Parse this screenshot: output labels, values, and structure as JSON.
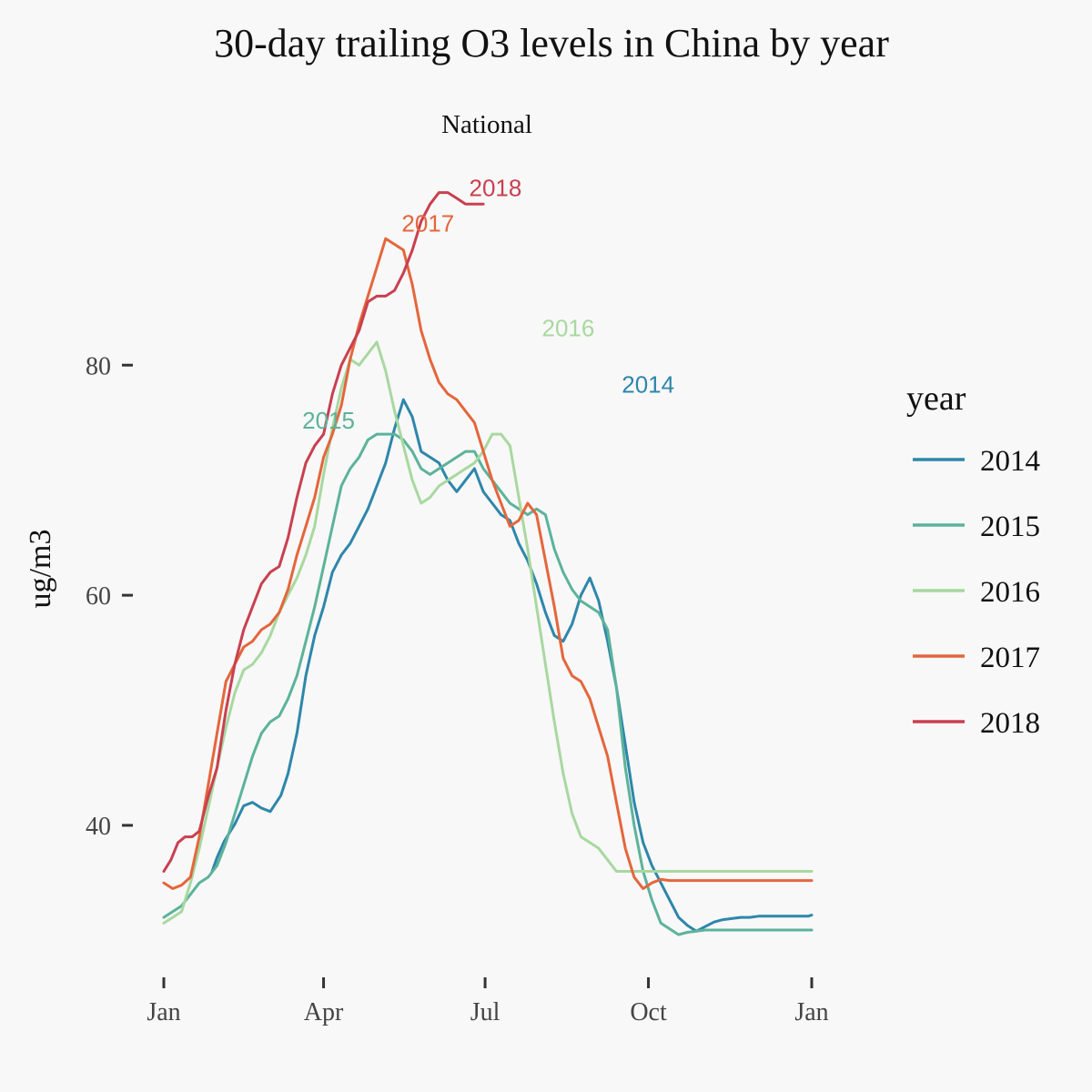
{
  "chart_data": {
    "type": "line",
    "title": "30-day trailing O3 levels in China by year",
    "facet_label": "National",
    "xlabel": "",
    "ylabel": "ug/m3",
    "x_ticks": [
      "Jan",
      "Apr",
      "Jul",
      "Oct",
      "Jan"
    ],
    "x_tick_days": [
      0,
      90,
      181,
      273,
      365
    ],
    "xlim": [
      0,
      365
    ],
    "y_ticks": [
      40,
      60,
      80
    ],
    "ylim": [
      27.5,
      97.5
    ],
    "grid": false,
    "legend": {
      "title": "year",
      "position": "right"
    },
    "x_unit": "day of year",
    "series": [
      {
        "name": "2014",
        "color": "#2e86ab",
        "label": "2014",
        "x": [
          27,
          30,
          34,
          40,
          45,
          50,
          55,
          60,
          66,
          70,
          75,
          80,
          85,
          90,
          95,
          100,
          105,
          110,
          115,
          120,
          125,
          130,
          135,
          140,
          145,
          150,
          155,
          160,
          165,
          170,
          175,
          180,
          185,
          190,
          195,
          200,
          205,
          210,
          215,
          220,
          225,
          230,
          235,
          240,
          245,
          250,
          255,
          260,
          265,
          270,
          275,
          280,
          285,
          290,
          295,
          300,
          305,
          310,
          315,
          320,
          325,
          330,
          335,
          340,
          345,
          350,
          355,
          360,
          363,
          365
        ],
        "y": [
          35.9,
          37.2,
          38.6,
          40.1,
          41.7,
          42.0,
          41.5,
          41.2,
          42.6,
          44.5,
          48.0,
          53.0,
          56.5,
          59.0,
          62.0,
          63.5,
          64.5,
          66.0,
          67.5,
          69.5,
          71.5,
          74.5,
          77.0,
          75.5,
          72.5,
          72.0,
          71.5,
          70.0,
          69.0,
          70.0,
          71.0,
          69.0,
          68.0,
          67.0,
          66.5,
          64.5,
          63.0,
          61.0,
          58.5,
          56.5,
          56.0,
          57.5,
          60.0,
          61.5,
          59.5,
          56.0,
          52.0,
          47.0,
          42.0,
          38.5,
          36.5,
          35.0,
          33.5,
          32.0,
          31.3,
          30.8,
          31.2,
          31.6,
          31.8,
          31.9,
          32.0,
          32.0,
          32.1,
          32.1,
          32.1,
          32.1,
          32.1,
          32.1,
          32.1,
          32.2
        ],
        "label_x": 258,
        "label_y": 77.6
      },
      {
        "name": "2015",
        "color": "#5cb39a",
        "label": "2015",
        "x": [
          0,
          5,
          10,
          15,
          20,
          25,
          30,
          35,
          40,
          45,
          50,
          55,
          60,
          65,
          70,
          75,
          80,
          85,
          90,
          95,
          100,
          105,
          110,
          115,
          120,
          125,
          130,
          135,
          140,
          145,
          150,
          155,
          160,
          165,
          170,
          175,
          180,
          185,
          190,
          195,
          200,
          205,
          210,
          215,
          220,
          225,
          230,
          235,
          240,
          245,
          250,
          255,
          260,
          265,
          270,
          275,
          280,
          285,
          290,
          295,
          300,
          305,
          310,
          315,
          320,
          325,
          330,
          335,
          340,
          345,
          350,
          355,
          360,
          365
        ],
        "y": [
          32.0,
          32.5,
          33.0,
          34.0,
          35.0,
          35.5,
          36.5,
          38.5,
          41.0,
          43.5,
          46.0,
          48.0,
          49.0,
          49.5,
          51.0,
          53.0,
          56.0,
          59.0,
          62.5,
          66.0,
          69.5,
          71.0,
          72.0,
          73.5,
          74.0,
          74.0,
          74.0,
          73.5,
          72.5,
          71.0,
          70.5,
          71.0,
          71.5,
          72.0,
          72.5,
          72.5,
          71.0,
          70.0,
          69.0,
          68.0,
          67.5,
          67.0,
          67.5,
          67.0,
          64.0,
          62.0,
          60.5,
          59.5,
          59.0,
          58.5,
          57.0,
          52.0,
          45.0,
          40.0,
          36.0,
          33.5,
          31.5,
          31.0,
          30.5,
          30.7,
          30.8,
          30.9,
          30.9,
          30.9,
          30.9,
          30.9,
          30.9,
          30.9,
          30.9,
          30.9,
          30.9,
          30.9,
          30.9,
          30.9
        ],
        "label_x": 78,
        "label_y": 74.5
      },
      {
        "name": "2016",
        "color": "#a8d8a0",
        "label": "2016",
        "x": [
          0,
          5,
          10,
          15,
          20,
          25,
          30,
          35,
          40,
          45,
          50,
          55,
          60,
          65,
          70,
          75,
          80,
          85,
          90,
          95,
          100,
          105,
          110,
          115,
          120,
          125,
          130,
          135,
          140,
          145,
          150,
          155,
          160,
          165,
          170,
          175,
          180,
          185,
          190,
          195,
          200,
          205,
          210,
          215,
          220,
          225,
          230,
          235,
          240,
          245,
          250,
          255,
          260,
          265,
          270,
          275,
          280,
          285,
          290,
          295,
          300,
          305,
          310,
          315,
          320,
          325,
          330,
          335,
          340,
          345,
          350,
          355,
          360,
          365
        ],
        "y": [
          31.5,
          32.0,
          32.5,
          35.0,
          38.0,
          41.5,
          45.0,
          48.5,
          51.5,
          53.5,
          54.0,
          55.0,
          56.5,
          58.5,
          60.0,
          61.5,
          63.5,
          66.0,
          70.5,
          74.5,
          78.0,
          80.5,
          80.0,
          81.0,
          82.0,
          79.5,
          76.0,
          73.0,
          70.0,
          68.0,
          68.5,
          69.5,
          70.0,
          70.5,
          71.0,
          71.5,
          72.5,
          74.0,
          74.0,
          73.0,
          68.5,
          64.0,
          59.0,
          54.0,
          49.0,
          44.5,
          41.0,
          39.0,
          38.5,
          38.0,
          37.0,
          36.0,
          36.0,
          36.0,
          36.0,
          36.0,
          36.0,
          36.0,
          36.0,
          36.0,
          36.0,
          36.0,
          36.0,
          36.0,
          36.0,
          36.0,
          36.0,
          36.0,
          36.0,
          36.0,
          36.0,
          36.0,
          36.0,
          36.0
        ],
        "label_x": 213,
        "label_y": 82.5
      },
      {
        "name": "2017",
        "color": "#e4663c",
        "label": "2017",
        "x": [
          0,
          5,
          10,
          15,
          20,
          25,
          30,
          35,
          40,
          45,
          50,
          55,
          60,
          65,
          70,
          75,
          80,
          85,
          90,
          95,
          100,
          105,
          110,
          115,
          120,
          125,
          130,
          135,
          140,
          145,
          150,
          155,
          160,
          165,
          170,
          175,
          180,
          185,
          190,
          195,
          200,
          205,
          210,
          215,
          220,
          225,
          230,
          235,
          240,
          245,
          250,
          255,
          260,
          265,
          270,
          275,
          280,
          285,
          290,
          295,
          300,
          305,
          310,
          315,
          320,
          325,
          330,
          335,
          340,
          345,
          350,
          355,
          360,
          365
        ],
        "y": [
          35.0,
          34.5,
          34.8,
          35.5,
          39.0,
          43.5,
          48.0,
          52.5,
          54.0,
          55.5,
          56.0,
          57.0,
          57.5,
          58.5,
          60.5,
          63.5,
          66.0,
          68.5,
          72.0,
          74.0,
          76.5,
          80.5,
          83.5,
          86.0,
          88.5,
          91.0,
          90.5,
          90.0,
          87.0,
          83.0,
          80.5,
          78.5,
          77.5,
          77.0,
          76.0,
          75.0,
          72.5,
          70.0,
          68.0,
          66.0,
          66.5,
          68.0,
          67.0,
          63.0,
          59.0,
          54.5,
          53.0,
          52.5,
          51.0,
          48.5,
          46.0,
          42.0,
          38.0,
          35.5,
          34.5,
          35.0,
          35.3,
          35.2,
          35.2,
          35.2,
          35.2,
          35.2,
          35.2,
          35.2,
          35.2,
          35.2,
          35.2,
          35.2,
          35.2,
          35.2,
          35.2,
          35.2,
          35.2,
          35.2
        ],
        "label_x": 134,
        "label_y": 91.6
      },
      {
        "name": "2018",
        "color": "#c94050",
        "label": "2018",
        "x": [
          0,
          4,
          8,
          12,
          16,
          20,
          25,
          30,
          35,
          40,
          45,
          50,
          55,
          60,
          65,
          70,
          75,
          80,
          85,
          90,
          95,
          100,
          105,
          110,
          115,
          120,
          125,
          130,
          135,
          140,
          145,
          150,
          155,
          160,
          165,
          170,
          175,
          180
        ],
        "y": [
          36.0,
          37.0,
          38.5,
          39.0,
          39.0,
          39.5,
          42.5,
          45.0,
          50.0,
          54.0,
          57.0,
          59.0,
          61.0,
          62.0,
          62.5,
          65.0,
          68.5,
          71.5,
          73.0,
          74.0,
          77.5,
          80.0,
          81.5,
          83.0,
          85.5,
          86.0,
          86.0,
          86.5,
          88.0,
          90.0,
          92.5,
          94.0,
          95.0,
          95.0,
          94.5,
          94.0,
          94.0,
          94.0
        ],
        "label_x": 172,
        "label_y": 94.7
      }
    ]
  }
}
